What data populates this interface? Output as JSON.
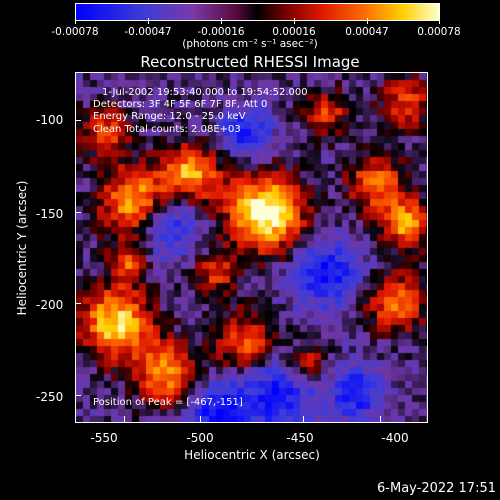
{
  "colorbar": {
    "ticks": [
      "-0.00078",
      "-0.00047",
      "-0.00016",
      "0.00016",
      "0.00047",
      "0.00078"
    ],
    "units": "(photons cm⁻² s⁻¹ asec⁻²)"
  },
  "title": "Reconstructed RHESSI Image",
  "annotations": {
    "time": "1-Jul-2002 19:53:40.000 to 19:54:52.000",
    "detectors": "Detectors: 3F 4F 5F 6F 7F 8F, Att 0",
    "energy": "Energy Range: 12.0 - 25.0 keV",
    "clean": "Clean     Total counts: 2.08E+03",
    "peak": "Position of Peak = [-467,-151]"
  },
  "axes": {
    "xlabel": "Heliocentric X (arcsec)",
    "ylabel": "Heliocentric Y (arcsec)",
    "xticks": [
      "-550",
      "-500",
      "-450",
      "-400"
    ],
    "yticks": [
      "-100",
      "-150",
      "-200",
      "-250"
    ]
  },
  "chart_data": {
    "type": "heatmap",
    "title": "Reconstructed RHESSI Image",
    "xlabel": "Heliocentric X (arcsec)",
    "ylabel": "Heliocentric Y (arcsec)",
    "xlim": [
      -570,
      -375
    ],
    "ylim": [
      -265,
      -72
    ],
    "xticks": [
      -550,
      -500,
      -450,
      -400
    ],
    "yticks": [
      -100,
      -150,
      -200,
      -250
    ],
    "colorbar_range": [
      -0.00078,
      0.00078
    ],
    "peak": [
      -467,
      -151
    ],
    "colormap": [
      "#0000ff",
      "#7a3aa8",
      "#000000",
      "#e01a00",
      "#ff7000",
      "#ffd000",
      "#ffffd0"
    ]
  },
  "footer": {
    "date": "6-May-2022 17:51"
  }
}
